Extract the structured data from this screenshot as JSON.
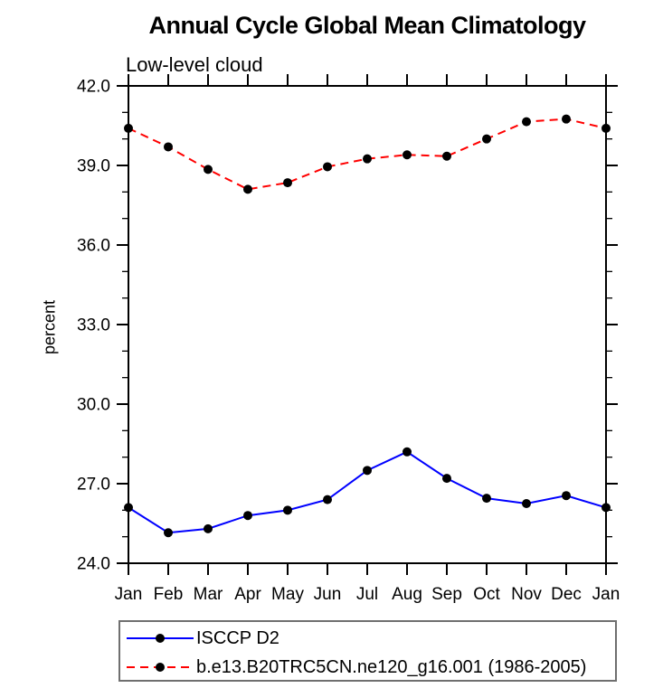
{
  "page": {
    "background": "#ffffff",
    "text_color": "#000000"
  },
  "chart_data": {
    "type": "line",
    "title": "Annual Cycle Global Mean Climatology",
    "subtitle": "Low-level cloud",
    "xlabel": "",
    "ylabel": "percent",
    "categories": [
      "Jan",
      "Feb",
      "Mar",
      "Apr",
      "May",
      "Jun",
      "Jul",
      "Aug",
      "Sep",
      "Oct",
      "Nov",
      "Dec",
      "Jan"
    ],
    "series": [
      {
        "name": "ISCCP D2",
        "color": "#0000ff",
        "line_style": "solid",
        "marker": "filled-black-circle",
        "values": [
          26.1,
          25.15,
          25.3,
          25.8,
          26.0,
          26.4,
          27.5,
          28.2,
          27.2,
          26.45,
          26.25,
          26.55,
          26.1
        ]
      },
      {
        "name": "b.e13.B20TRC5CN.ne120_g16.001 (1986-2005)",
        "color": "#ff0000",
        "line_style": "dashed",
        "marker": "filled-black-circle",
        "values": [
          40.4,
          39.7,
          38.85,
          38.1,
          38.35,
          38.95,
          39.25,
          39.4,
          39.35,
          40.0,
          40.65,
          40.75,
          40.4
        ]
      }
    ],
    "ylim": [
      24.0,
      42.0
    ],
    "yticks_major": [
      24,
      27,
      30,
      33,
      36,
      39,
      42
    ],
    "ytick_labels": [
      "24.0",
      "27.0",
      "30.0",
      "33.0",
      "36.0",
      "39.0",
      "42.0"
    ],
    "yminor_interval": 1.0,
    "grid": false,
    "tick_direction": "outward-all-four-sides",
    "axis_color": "#000000",
    "marker_color": "#000000",
    "legend_position": "bottom-left-box"
  }
}
